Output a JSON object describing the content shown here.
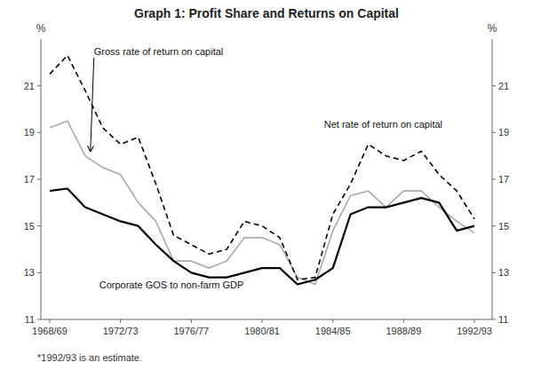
{
  "chart_data": {
    "type": "line",
    "title": "Graph 1: Profit Share and Returns on Capital",
    "footnote": "*1992/93 is an estimate.",
    "y_label": "%",
    "y2_label": "%",
    "grid": false,
    "x": [
      1968,
      1969,
      1970,
      1971,
      1972,
      1973,
      1974,
      1975,
      1976,
      1977,
      1978,
      1979,
      1980,
      1981,
      1982,
      1983,
      1984,
      1985,
      1986,
      1987,
      1988,
      1989,
      1990,
      1991,
      1992
    ],
    "xlim": [
      1967.5,
      1993.0
    ],
    "xticks": [
      {
        "value": 1968,
        "label": "1968/69"
      },
      {
        "value": 1972,
        "label": "1972/73"
      },
      {
        "value": 1976,
        "label": "1976/77"
      },
      {
        "value": 1980,
        "label": "1980/81"
      },
      {
        "value": 1984,
        "label": "1984/85"
      },
      {
        "value": 1988,
        "label": "1988/89"
      },
      {
        "value": 1992,
        "label": "1992/93"
      }
    ],
    "ylim": [
      11,
      23
    ],
    "yticks": [
      11,
      13,
      15,
      17,
      19,
      21
    ],
    "y2lim": [
      11,
      23
    ],
    "y2ticks": [
      11,
      13,
      15,
      17,
      19,
      21
    ],
    "series": [
      {
        "color": "#aaaaaa",
        "line_style": "solid",
        "values": [
          19.2,
          19.5,
          18.0,
          17.5,
          17.2,
          16.0,
          15.2,
          13.5,
          13.5,
          13.2,
          13.5,
          14.5,
          14.5,
          14.2,
          12.8,
          12.5,
          14.8,
          16.3,
          16.5,
          15.8,
          16.5,
          16.5,
          15.8,
          15.2,
          14.7
        ]
      },
      {
        "color": "black",
        "line_style": "dashed",
        "values": [
          21.5,
          22.3,
          20.8,
          19.2,
          18.5,
          18.8,
          16.8,
          14.6,
          14.2,
          13.8,
          14.0,
          15.2,
          15.0,
          14.5,
          12.7,
          12.8,
          15.5,
          16.8,
          18.5,
          18.0,
          17.8,
          18.2,
          17.2,
          16.5,
          15.3
        ]
      },
      {
        "color": "black",
        "line_style": "solid",
        "values": [
          16.5,
          16.6,
          15.8,
          15.5,
          15.2,
          15.0,
          14.2,
          13.5,
          13.0,
          12.8,
          12.8,
          13.0,
          13.2,
          13.2,
          12.5,
          12.7,
          13.2,
          15.5,
          15.8,
          15.8,
          16.0,
          16.2,
          16.0,
          14.8,
          15.0
        ]
      }
    ],
    "annotations": [
      {
        "text": "Gross rate of return on capital",
        "x": 1970.5,
        "y": 22.2,
        "arrow": {
          "x": 1970.3,
          "y": 18.2
        }
      },
      {
        "text": "Net rate of return on capital",
        "x": 1983.5,
        "y": 19.1
      },
      {
        "text": "Corporate GOS to non-farm GDP",
        "x": 1970.8,
        "y": 12.2
      }
    ]
  }
}
